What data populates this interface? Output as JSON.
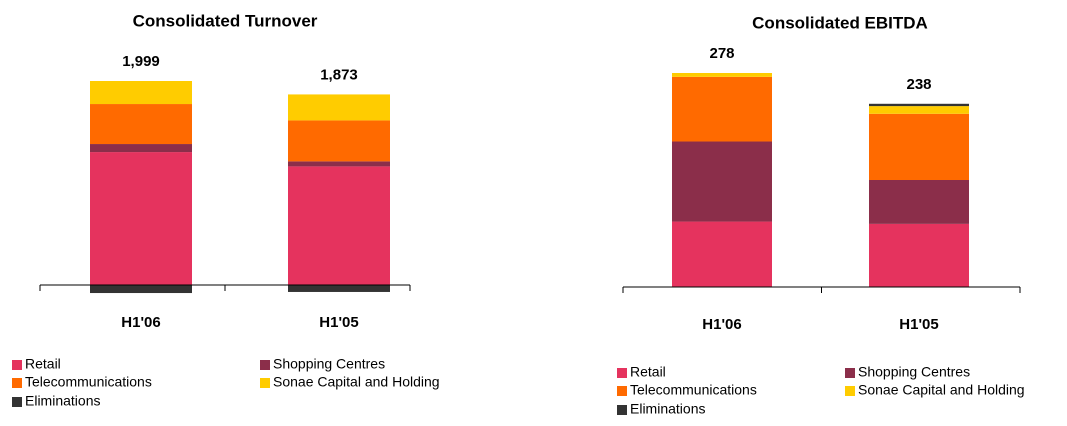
{
  "chart_data": [
    {
      "type": "bar",
      "stacked": true,
      "title": "Consolidated Turnover",
      "categories": [
        "H1'06",
        "H1'05"
      ],
      "series": [
        {
          "name": "Retail",
          "color": "#e5335e",
          "values": [
            1356,
            1210
          ]
        },
        {
          "name": "Shopping Centres",
          "color": "#8b2e4a",
          "values": [
            82,
            51
          ]
        },
        {
          "name": "Telecommunications",
          "color": "#ff6a00",
          "values": [
            408,
            418
          ]
        },
        {
          "name": "Sonae Capital and Holding",
          "color": "#ffcc00",
          "values": [
            235,
            265
          ]
        },
        {
          "name": "Eliminations",
          "color": "#333333",
          "values": [
            -82,
            -71
          ]
        }
      ],
      "totals": [
        1999,
        1873
      ],
      "totals_labels": [
        "1,999",
        "1,873"
      ]
    },
    {
      "type": "bar",
      "stacked": true,
      "title": "Consolidated EBITDA",
      "categories": [
        "H1'06",
        "H1'05"
      ],
      "series": [
        {
          "name": "Retail",
          "color": "#e5335e",
          "values": [
            85,
            82
          ]
        },
        {
          "name": "Shopping Centres",
          "color": "#8b2e4a",
          "values": [
            104,
            57
          ]
        },
        {
          "name": "Telecommunications",
          "color": "#ff6a00",
          "values": [
            84,
            86
          ]
        },
        {
          "name": "Sonae Capital and Holding",
          "color": "#ffcc00",
          "values": [
            5,
            10
          ]
        },
        {
          "name": "Eliminations",
          "color": "#333333",
          "values": [
            0,
            3
          ]
        }
      ],
      "totals": [
        278,
        238
      ],
      "totals_labels": [
        "278",
        "238"
      ]
    }
  ]
}
